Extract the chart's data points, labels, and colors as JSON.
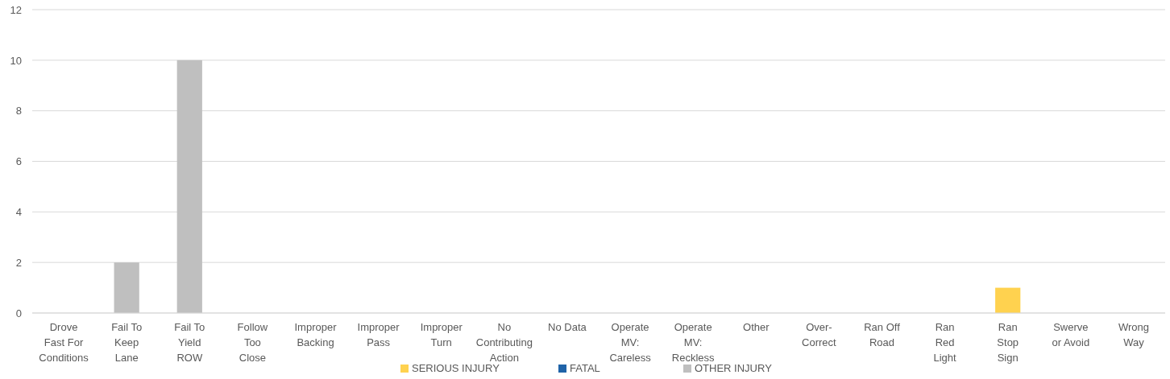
{
  "chart_data": {
    "type": "bar",
    "stacked": true,
    "categories": [
      "Drove Fast For Conditions",
      "Fail To Keep Lane",
      "Fail To Yield ROW",
      "Follow Too Close",
      "Improper Backing",
      "Improper Pass",
      "Improper Turn",
      "No Contributing Action",
      "No Data",
      "Operate MV: Careless",
      "Operate MV: Reckless",
      "Other",
      "Over-Correct",
      "Ran Off Road",
      "Ran Red Light",
      "Ran Stop Sign",
      "Swerve or Avoid",
      "Wrong Way"
    ],
    "series": [
      {
        "name": "SERIOUS INJURY",
        "color": "#ffd24f",
        "values": [
          0,
          0,
          0,
          0,
          0,
          0,
          0,
          0,
          0,
          0,
          0,
          0,
          0,
          0,
          0,
          1,
          0,
          0
        ]
      },
      {
        "name": "FATAL",
        "color": "#1f63a8",
        "values": [
          0,
          0,
          0,
          0,
          0,
          0,
          0,
          0,
          0,
          0,
          0,
          0,
          0,
          0,
          0,
          0,
          0,
          0
        ]
      },
      {
        "name": "OTHER INJURY",
        "color": "#bfbfbf",
        "values": [
          0,
          2,
          10,
          0,
          0,
          0,
          0,
          0,
          0,
          0,
          0,
          0,
          0,
          0,
          0,
          0,
          0,
          0
        ]
      }
    ],
    "ylim": [
      0,
      12
    ],
    "yticks": [
      0,
      2,
      4,
      6,
      8,
      10,
      12
    ],
    "grid": "y",
    "legend": "bottom"
  }
}
